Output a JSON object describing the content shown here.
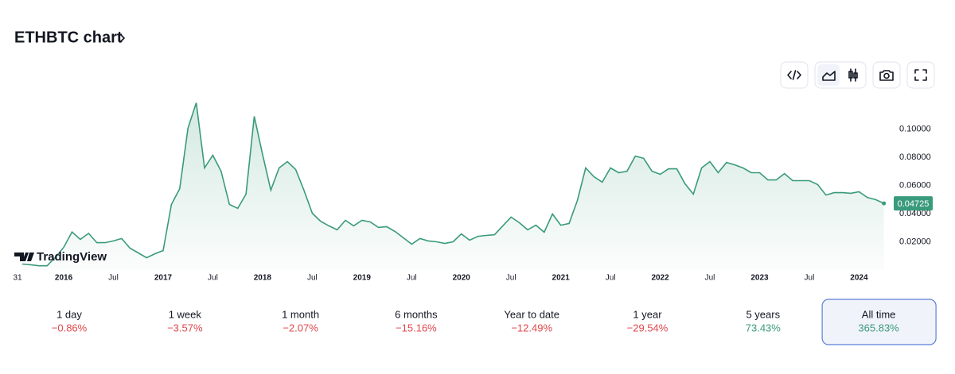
{
  "header": {
    "title": "ETHBTC chart"
  },
  "chart_data": {
    "type": "area",
    "color": "#3a9a7c",
    "categories": [
      "31",
      null,
      null,
      null,
      null,
      "2016",
      null,
      null,
      null,
      null,
      null,
      "Jul",
      null,
      null,
      null,
      null,
      null,
      "2017",
      null,
      null,
      null,
      null,
      null,
      "Jul",
      null,
      null,
      null,
      null,
      null,
      "2018",
      null,
      null,
      null,
      null,
      null,
      "Jul",
      null,
      null,
      null,
      null,
      null,
      "2019",
      null,
      null,
      null,
      null,
      null,
      "Jul",
      null,
      null,
      null,
      null,
      null,
      "2020",
      null,
      null,
      null,
      null,
      null,
      "Jul",
      null,
      null,
      null,
      null,
      null,
      "2021",
      null,
      null,
      null,
      null,
      null,
      "Jul",
      null,
      null,
      null,
      null,
      null,
      "2022",
      null,
      null,
      null,
      null,
      null,
      "Jul",
      null,
      null,
      null,
      null,
      null,
      "2023",
      null,
      null,
      null,
      null,
      null,
      "Jul",
      null,
      null,
      null,
      null,
      null,
      "2024",
      null,
      null,
      null
    ],
    "values": [
      0.0042,
      0.0037,
      0.003,
      0.003,
      0.009,
      0.016,
      0.027,
      0.0217,
      0.026,
      0.0194,
      0.0194,
      0.0206,
      0.0223,
      0.0155,
      0.0121,
      0.0087,
      0.0115,
      0.0138,
      0.0465,
      0.0577,
      0.1006,
      0.1186,
      0.0724,
      0.0814,
      0.0701,
      0.0465,
      0.0437,
      0.0538,
      0.109,
      0.082,
      0.0566,
      0.0724,
      0.0769,
      0.0713,
      0.0566,
      0.0403,
      0.0346,
      0.0313,
      0.0285,
      0.0352,
      0.0313,
      0.0352,
      0.0341,
      0.0302,
      0.0307,
      0.0273,
      0.0228,
      0.0183,
      0.0223,
      0.0206,
      0.02,
      0.0189,
      0.02,
      0.0256,
      0.0211,
      0.0239,
      0.0245,
      0.025,
      0.0313,
      0.0375,
      0.0335,
      0.0285,
      0.0318,
      0.0268,
      0.0397,
      0.0318,
      0.033,
      0.0493,
      0.0724,
      0.0662,
      0.0623,
      0.0724,
      0.069,
      0.0701,
      0.0808,
      0.0792,
      0.0701,
      0.0679,
      0.0718,
      0.0718,
      0.0611,
      0.0538,
      0.0724,
      0.0769,
      0.069,
      0.0763,
      0.0746,
      0.0724,
      0.069,
      0.069,
      0.0639,
      0.0639,
      0.0684,
      0.0634,
      0.0634,
      0.0634,
      0.0606,
      0.0532,
      0.0549,
      0.0549,
      0.0544,
      0.0555,
      0.0515,
      0.0499,
      0.04725
    ],
    "ylim": [
      0,
      0.12
    ],
    "yticks": [
      {
        "value": 0.02,
        "label": "0.02000"
      },
      {
        "value": 0.04,
        "label": "0.04000"
      },
      {
        "value": 0.06,
        "label": "0.06000"
      },
      {
        "value": 0.08,
        "label": "0.08000"
      },
      {
        "value": 0.1,
        "label": "0.10000"
      }
    ]
  },
  "watermark": "TradingView",
  "periods": [
    {
      "label": "1 day",
      "change": "−0.86%",
      "color": "#e0474c"
    },
    {
      "label": "1 week",
      "change": "−3.57%",
      "color": "#e0474c"
    },
    {
      "label": "1 month",
      "change": "−2.07%",
      "color": "#e0474c"
    },
    {
      "label": "6 months",
      "change": "−15.16%",
      "color": "#e0474c"
    },
    {
      "label": "Year to date",
      "change": "−12.49%",
      "color": "#e0474c"
    },
    {
      "label": "1 year",
      "change": "−29.54%",
      "color": "#e0474c"
    },
    {
      "label": "5 years",
      "change": "73.43%",
      "color": "#3a9a7c"
    },
    {
      "label": "All time",
      "change": "365.83%",
      "color": "#3a9a7c"
    }
  ],
  "active_period": 7
}
